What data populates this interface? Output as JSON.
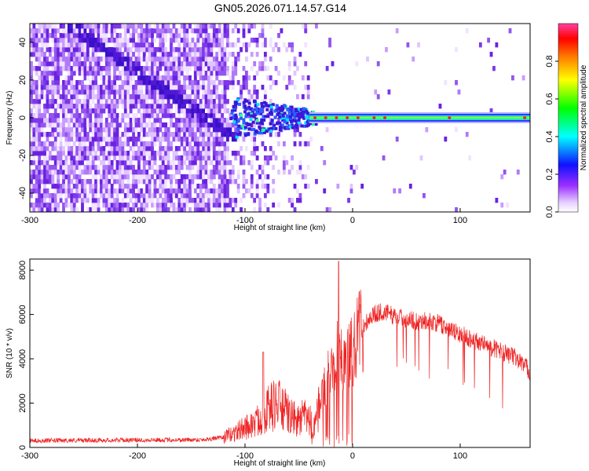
{
  "title": "GN05.2026.071.14.57.G14",
  "colors": {
    "snr_line": "#ee2222",
    "frame": "#000000",
    "background": "#ffffff",
    "spectrum_low": "#efe0ff",
    "spectrum_mid": "#6a2ce6",
    "spectrum_ridge": "#00ffff",
    "spectrum_peak": "#ff2020"
  },
  "chart_data": [
    {
      "type": "heatmap",
      "xlabel": "Height of straight line (km)",
      "ylabel": "Frequency (Hz)",
      "xlim": [
        -300,
        165
      ],
      "ylim": [
        -50,
        50
      ],
      "xticks": [
        -300,
        -200,
        -100,
        0,
        100
      ],
      "xtick_labels": [
        "-300",
        "-200",
        "-100",
        "0",
        "100"
      ],
      "yticks": [
        -40,
        -20,
        0,
        20,
        40
      ],
      "ytick_labels": [
        "-40",
        "-20",
        "0",
        "20",
        "40"
      ],
      "colorbar": {
        "label": "Normalized spectral amplitude",
        "range": [
          0,
          1
        ],
        "ticks": [
          0.0,
          0.2,
          0.4,
          0.6,
          0.8
        ],
        "tick_labels": [
          "0.0",
          "0.2",
          "0.4",
          "0.6",
          "0.8"
        ],
        "colormap": "rainbow (white-violet-blue-cyan-green-yellow-red-pink)"
      },
      "features": {
        "noise_region_km": [
          -300,
          -115
        ],
        "sloped_ridge": {
          "x_km": [
            -265,
            -110
          ],
          "freq_hz": [
            48,
            -12
          ]
        },
        "carrier_line": {
          "x_km": [
            -40,
            165
          ],
          "freq_hz": 0
        }
      },
      "grid": false
    },
    {
      "type": "line",
      "xlabel": "Height of straight line (km)",
      "ylabel": "SNR (10 * v/v)",
      "xlim": [
        -300,
        165
      ],
      "ylim": [
        0,
        8500
      ],
      "xticks": [
        -300,
        -200,
        -100,
        0,
        100
      ],
      "xtick_labels": [
        "-300",
        "-200",
        "-100",
        "0",
        "100"
      ],
      "yticks": [
        0,
        2000,
        4000,
        6000,
        8000
      ],
      "ytick_labels": [
        "0",
        "2000",
        "4000",
        "6000",
        "8000"
      ],
      "grid": false,
      "series": [
        {
          "color": "#ee2222",
          "x": [
            -300,
            -260,
            -220,
            -180,
            -140,
            -120,
            -110,
            -100,
            -90,
            -80,
            -70,
            -60,
            -55,
            -50,
            -45,
            -40,
            -35,
            -30,
            -25,
            -20,
            -15,
            -10,
            -5,
            0,
            5,
            10,
            15,
            20,
            25,
            30,
            35,
            40,
            50,
            60,
            70,
            80,
            90,
            100,
            110,
            120,
            130,
            140,
            150,
            160,
            165
          ],
          "y": [
            300,
            320,
            330,
            340,
            350,
            450,
            650,
            900,
            1100,
            1700,
            2000,
            1500,
            1300,
            1200,
            1400,
            1200,
            900,
            2000,
            3000,
            3500,
            4300,
            4000,
            4100,
            4300,
            5000,
            5500,
            5800,
            6000,
            6100,
            6100,
            6000,
            5900,
            5800,
            5700,
            5700,
            5600,
            5300,
            5100,
            4900,
            4700,
            4500,
            4300,
            4100,
            3700,
            3400
          ]
        }
      ],
      "annotations": [
        {
          "x": -13,
          "y": 8400,
          "note": "narrow spike"
        },
        {
          "x": -83,
          "y": 4300,
          "note": "spike"
        }
      ]
    }
  ]
}
